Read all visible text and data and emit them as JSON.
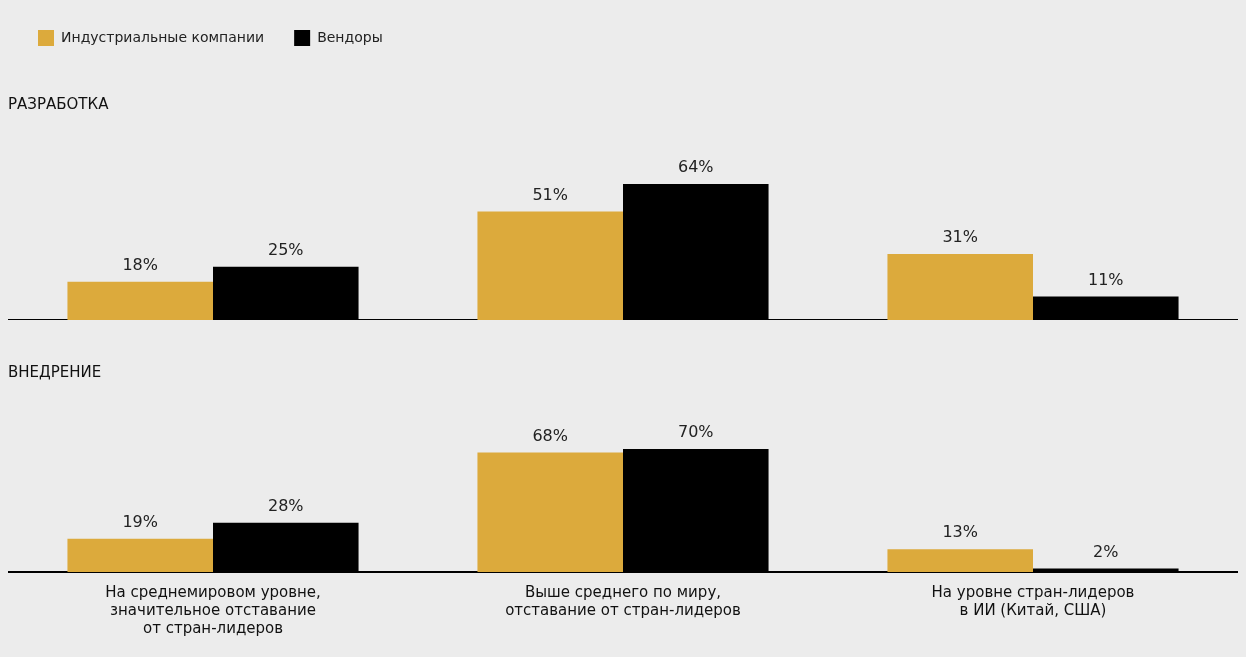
{
  "chart_data": [
    {
      "type": "bar",
      "title": "РАЗРАБОТКА",
      "categories": [
        null,
        null,
        null
      ],
      "legend": "top left",
      "tick_labels": false,
      "grid": false,
      "series": [
        {
          "name": "Индустриальные компании",
          "color": "#dcaa3c",
          "values": [
            18,
            51,
            31
          ],
          "value_labels": [
            "18%",
            "51%",
            "31%"
          ]
        },
        {
          "name": "Вендоры",
          "color": "#000000",
          "values": [
            25,
            64,
            11
          ],
          "value_labels": [
            "25%",
            "64%",
            "11%"
          ]
        }
      ]
    },
    {
      "type": "bar",
      "title": "ВНЕДРЕНИЕ",
      "categories": [
        "На среднемировом уровне, значительное отставание от стран-лидеров",
        "Выше среднего по миру, отставание от стран-лидеров",
        "На уровне стран-лидеров в ИИ (Китай, США)"
      ],
      "tick_labels": "x",
      "grid": false,
      "series": [
        {
          "color": "#dcaa3c",
          "values": [
            19,
            68,
            13
          ],
          "value_labels": [
            "19%",
            "68%",
            "13%"
          ]
        },
        {
          "color": "#000000",
          "values": [
            28,
            70,
            2
          ],
          "value_labels": [
            "28%",
            "70%",
            "2%"
          ]
        }
      ]
    }
  ]
}
